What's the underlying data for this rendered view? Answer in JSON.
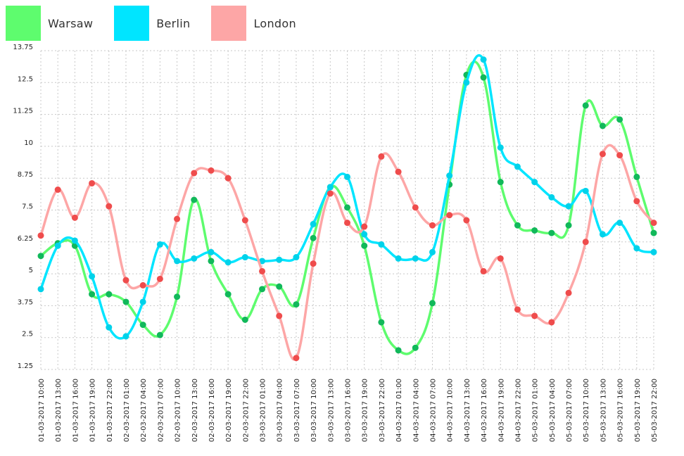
{
  "chart_data": {
    "type": "line",
    "title": "",
    "xlabel": "",
    "ylabel": "",
    "ylim": [
      1.25,
      13.75
    ],
    "y_ticks": [
      "1.25",
      "2.5",
      "3.75",
      "5",
      "6.25",
      "7.5",
      "8.75",
      "10",
      "11.25",
      "12.5",
      "13.75"
    ],
    "y_tick_values": [
      1.25,
      2.5,
      3.75,
      5,
      6.25,
      7.5,
      8.75,
      10,
      11.25,
      12.5,
      13.75
    ],
    "grid": true,
    "legend": "top-left",
    "categories": [
      "01-03-2017 10:00",
      "01-03-2017 13:00",
      "01-03-2017 16:00",
      "01-03-2017 19:00",
      "01-03-2017 22:00",
      "02-03-2017 01:00",
      "02-03-2017 04:00",
      "02-03-2017 07:00",
      "02-03-2017 10:00",
      "02-03-2017 13:00",
      "02-03-2017 16:00",
      "02-03-2017 19:00",
      "02-03-2017 22:00",
      "03-03-2017 01:00",
      "03-03-2017 04:00",
      "03-03-2017 07:00",
      "03-03-2017 10:00",
      "03-03-2017 13:00",
      "03-03-2017 16:00",
      "03-03-2017 19:00",
      "03-03-2017 22:00",
      "04-03-2017 01:00",
      "04-03-2017 04:00",
      "04-03-2017 07:00",
      "04-03-2017 10:00",
      "04-03-2017 13:00",
      "04-03-2017 16:00",
      "04-03-2017 19:00",
      "04-03-2017 22:00",
      "05-03-2017 01:00",
      "05-03-2017 04:00",
      "05-03-2017 07:00",
      "05-03-2017 10:00",
      "05-03-2017 13:00",
      "05-03-2017 16:00",
      "05-03-2017 19:00",
      "05-03-2017 22:00"
    ],
    "series": [
      {
        "name": "Warsaw",
        "line_color": "#5efc6e",
        "point_color": "#11b85a",
        "values": [
          5.7,
          6.2,
          6.1,
          4.2,
          4.2,
          3.9,
          3.0,
          2.6,
          4.1,
          7.9,
          5.5,
          4.2,
          3.2,
          4.4,
          4.5,
          3.8,
          6.4,
          8.4,
          7.6,
          6.1,
          3.1,
          2.0,
          2.1,
          3.85,
          8.5,
          12.8,
          12.7,
          8.6,
          6.9,
          6.7,
          6.6,
          6.9,
          11.6,
          10.8,
          11.05,
          8.8,
          6.6
        ]
      },
      {
        "name": "Berlin",
        "line_color": "#00e5ff",
        "point_color": "#00d2ea",
        "values": [
          4.4,
          6.1,
          6.3,
          4.9,
          2.9,
          2.55,
          3.9,
          6.15,
          5.5,
          5.6,
          5.85,
          5.45,
          5.65,
          5.5,
          5.55,
          5.65,
          6.95,
          8.4,
          8.8,
          6.55,
          6.15,
          5.6,
          5.6,
          5.85,
          8.85,
          12.5,
          13.4,
          9.95,
          9.2,
          8.6,
          8.0,
          7.65,
          8.25,
          6.55,
          7.0,
          6.0,
          5.85
        ]
      },
      {
        "name": "London",
        "line_color": "#fda6a6",
        "point_color": "#ef4c4c",
        "values": [
          6.5,
          8.3,
          7.2,
          8.55,
          7.65,
          4.75,
          4.55,
          4.8,
          7.15,
          8.95,
          9.05,
          8.75,
          7.1,
          5.1,
          3.35,
          1.7,
          5.4,
          8.15,
          7.0,
          6.85,
          9.6,
          9.0,
          7.6,
          6.9,
          7.3,
          7.1,
          5.1,
          5.6,
          3.6,
          3.35,
          3.1,
          4.25,
          6.25,
          9.7,
          9.65,
          7.85,
          7.0
        ]
      }
    ]
  }
}
